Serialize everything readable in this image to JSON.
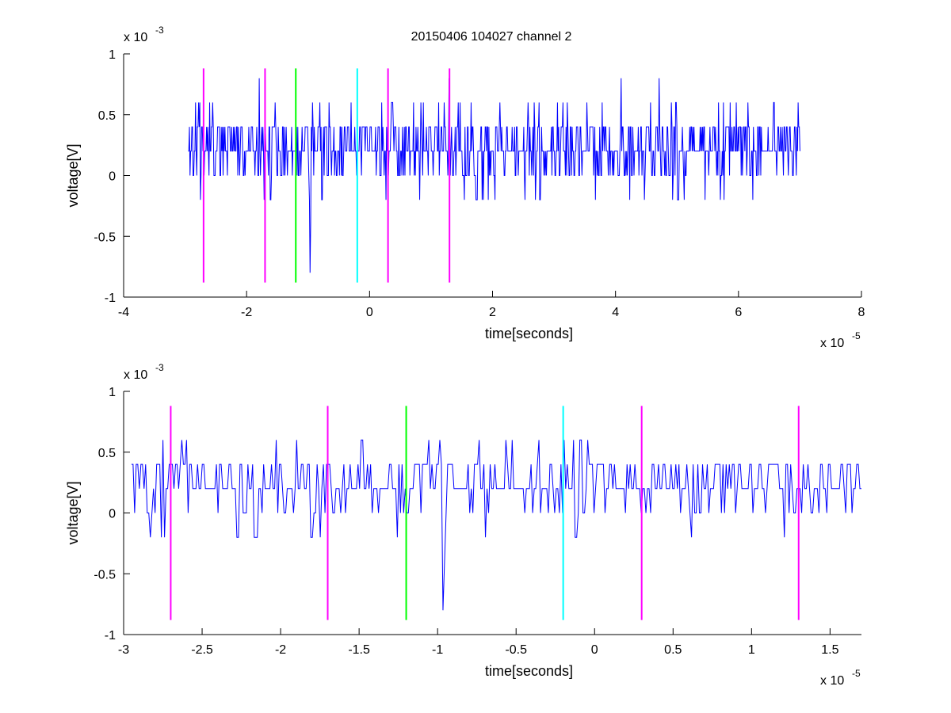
{
  "title": "20150406 104027 channel 2",
  "chart_data": [
    {
      "type": "line",
      "xlabel": "time[seconds]",
      "ylabel": "voltage[V]",
      "x_exponent_label": "x 10",
      "x_exponent": "-5",
      "y_exponent_label": "x 10",
      "y_exponent": "-3",
      "xlim": [
        -4,
        8
      ],
      "ylim": [
        -1,
        1
      ],
      "xticks": [
        "-4",
        "-2",
        "0",
        "2",
        "4",
        "6",
        "8"
      ],
      "yticks": [
        "-1",
        "-0.5",
        "0",
        "0.5",
        "1"
      ],
      "xtick_values": [
        -4,
        -2,
        0,
        2,
        4,
        6,
        8
      ],
      "ytick_values": [
        -1,
        -0.5,
        0,
        0.5,
        1
      ],
      "series": [
        {
          "color": "#0000ff",
          "x_start": -2.95,
          "x_end": 7.0,
          "samples": 1000,
          "levels": [
            -0.8,
            -0.2,
            0,
            0.2,
            0.4,
            0.6,
            0.8
          ],
          "typical_range": [
            0,
            0.4
          ]
        }
      ],
      "markers": [
        {
          "x": -2.7,
          "color": "#ff00ff"
        },
        {
          "x": -1.7,
          "color": "#ff00ff"
        },
        {
          "x": -1.2,
          "color": "#00ff00"
        },
        {
          "x": -0.2,
          "color": "#00ffff"
        },
        {
          "x": 0.3,
          "color": "#ff00ff"
        },
        {
          "x": 1.3,
          "color": "#ff00ff"
        }
      ],
      "marker_range": [
        -0.88,
        0.88
      ]
    },
    {
      "type": "line",
      "xlabel": "time[seconds]",
      "ylabel": "voltage[V]",
      "x_exponent_label": "x 10",
      "x_exponent": "-5",
      "y_exponent_label": "x 10",
      "y_exponent": "-3",
      "xlim": [
        -3.0,
        1.7
      ],
      "ylim": [
        -1,
        1
      ],
      "xticks": [
        "-3",
        "-2.5",
        "-2",
        "-1.5",
        "-1",
        "-0.5",
        "0",
        "0.5",
        "1",
        "1.5"
      ],
      "yticks": [
        "-1",
        "-0.5",
        "0",
        "0.5",
        "1"
      ],
      "xtick_values": [
        -3,
        -2.5,
        -2,
        -1.5,
        -1,
        -0.5,
        0,
        0.5,
        1,
        1.5
      ],
      "ytick_values": [
        -1,
        -0.5,
        0,
        0.5,
        1
      ],
      "series": [
        {
          "color": "#0000ff",
          "x_start": -2.95,
          "x_end": 1.7,
          "samples": 465,
          "levels": [
            -0.8,
            -0.2,
            0,
            0.2,
            0.4,
            0.6,
            0.8
          ],
          "typical_range": [
            0,
            0.4
          ]
        }
      ],
      "markers": [
        {
          "x": -2.7,
          "color": "#ff00ff"
        },
        {
          "x": -1.7,
          "color": "#ff00ff"
        },
        {
          "x": -1.2,
          "color": "#00ff00"
        },
        {
          "x": -0.2,
          "color": "#00ffff"
        },
        {
          "x": 0.3,
          "color": "#ff00ff"
        },
        {
          "x": 1.3,
          "color": "#ff00ff"
        }
      ],
      "marker_range": [
        -0.88,
        0.88
      ]
    }
  ]
}
